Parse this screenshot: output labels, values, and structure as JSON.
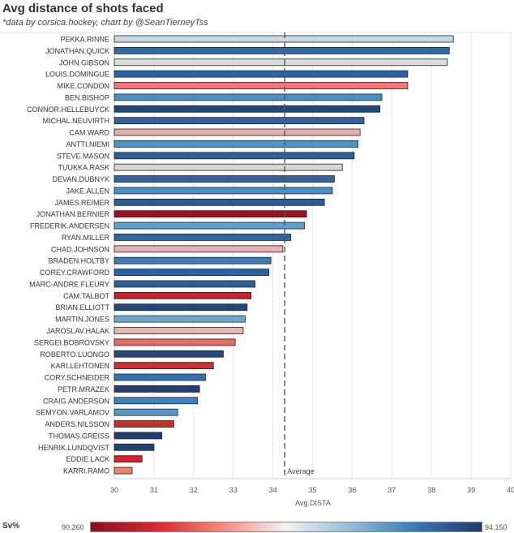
{
  "header": {
    "title": "Avg distance of shots faced",
    "subtitle": "*data by corsica.hockey, chart by @SeanTierneyTss"
  },
  "legend": {
    "label": "Sv%",
    "min": "90.260",
    "max": "94.150",
    "colors": [
      "#8b0f1f",
      "#d7282e",
      "#f3877a",
      "#f2f2f2",
      "#8fbad6",
      "#3a79b3",
      "#203b6a"
    ]
  },
  "chart_data": {
    "type": "bar",
    "orientation": "horizontal",
    "title": "Avg distance of shots faced",
    "xlabel": "Avg.DISTA",
    "xlim": [
      30,
      40
    ],
    "xticks": [
      "30",
      "31",
      "32",
      "33",
      "34",
      "35",
      "36",
      "37",
      "38",
      "39",
      "40"
    ],
    "reference_line": {
      "label": "Average",
      "value": 34.3
    },
    "bars": [
      {
        "name": "PEKKA.RINNE",
        "value": 38.55,
        "color": "#c9d9e3"
      },
      {
        "name": "JONATHAN.QUICK",
        "value": 38.45,
        "color": "#2f6aa8"
      },
      {
        "name": "JOHN.GIBSON",
        "value": 38.4,
        "color": "#dcdcdc"
      },
      {
        "name": "LOUIS.DOMINGUE",
        "value": 37.4,
        "color": "#2a64a6"
      },
      {
        "name": "MIKE.CONDON",
        "value": 37.4,
        "color": "#f07a72"
      },
      {
        "name": "BEN.BISHOP",
        "value": 36.75,
        "color": "#4a8ec6"
      },
      {
        "name": "CONNOR.HELLEBUYCK",
        "value": 36.7,
        "color": "#23467e"
      },
      {
        "name": "MICHAL.NEUVIRTH",
        "value": 36.3,
        "color": "#2e62a0"
      },
      {
        "name": "CAM.WARD",
        "value": 36.2,
        "color": "#e3b0b0"
      },
      {
        "name": "ANTTI.NIEMI",
        "value": 36.15,
        "color": "#4c93c9"
      },
      {
        "name": "STEVE.MASON",
        "value": 36.05,
        "color": "#2e5e9c"
      },
      {
        "name": "TUUKKA.RASK",
        "value": 35.75,
        "color": "#d6d6d6"
      },
      {
        "name": "DEVAN.DUBNYK",
        "value": 35.55,
        "color": "#2f64a2"
      },
      {
        "name": "JAKE.ALLEN",
        "value": 35.5,
        "color": "#4a90c6"
      },
      {
        "name": "JAMES.REIMER",
        "value": 35.3,
        "color": "#2c5b98"
      },
      {
        "name": "JONATHAN.BERNIER",
        "value": 34.85,
        "color": "#9b1124"
      },
      {
        "name": "FREDERIK.ANDERSEN",
        "value": 34.8,
        "color": "#5e9fcd"
      },
      {
        "name": "RYAN.MILLER",
        "value": 34.45,
        "color": "#2c66a7"
      },
      {
        "name": "CHAD.JOHNSON",
        "value": 34.25,
        "color": "#e8b2b2"
      },
      {
        "name": "BRADEN.HOLTBY",
        "value": 33.95,
        "color": "#3a7bb8"
      },
      {
        "name": "COREY.CRAWFORD",
        "value": 33.9,
        "color": "#2c63a3"
      },
      {
        "name": "MARC-ANDRE.FLEURY",
        "value": 33.55,
        "color": "#2c5f9e"
      },
      {
        "name": "CAM.TALBOT",
        "value": 33.45,
        "color": "#c8202a"
      },
      {
        "name": "BRIAN.ELLIOTT",
        "value": 33.35,
        "color": "#24457c"
      },
      {
        "name": "MARTIN.JONES",
        "value": 33.3,
        "color": "#6fa9d2"
      },
      {
        "name": "JAROSLAV.HALAK",
        "value": 33.25,
        "color": "#e4b5b5"
      },
      {
        "name": "SERGEI.BOBROVSKY",
        "value": 33.05,
        "color": "#ea6a63"
      },
      {
        "name": "ROBERTO.LUONGO",
        "value": 32.75,
        "color": "#24477f"
      },
      {
        "name": "KARI.LEHTONEN",
        "value": 32.5,
        "color": "#d42a2c"
      },
      {
        "name": "CORY.SCHNEIDER",
        "value": 32.3,
        "color": "#3173b1"
      },
      {
        "name": "PETR.MRAZEK",
        "value": 32.15,
        "color": "#223f72"
      },
      {
        "name": "CRAIG.ANDERSON",
        "value": 32.1,
        "color": "#3e82be"
      },
      {
        "name": "SEMYON.VARLAMOV",
        "value": 31.6,
        "color": "#5b98c8"
      },
      {
        "name": "ANDERS.NILSSON",
        "value": 31.5,
        "color": "#cf2a2a"
      },
      {
        "name": "THOMAS.GREISS",
        "value": 31.2,
        "color": "#203d70"
      },
      {
        "name": "HENRIK.LUNDQVIST",
        "value": 31.0,
        "color": "#214276"
      },
      {
        "name": "EDDIE.LACK",
        "value": 30.7,
        "color": "#d4232b"
      },
      {
        "name": "KARRI.RAMO",
        "value": 30.45,
        "color": "#f08070"
      }
    ]
  }
}
